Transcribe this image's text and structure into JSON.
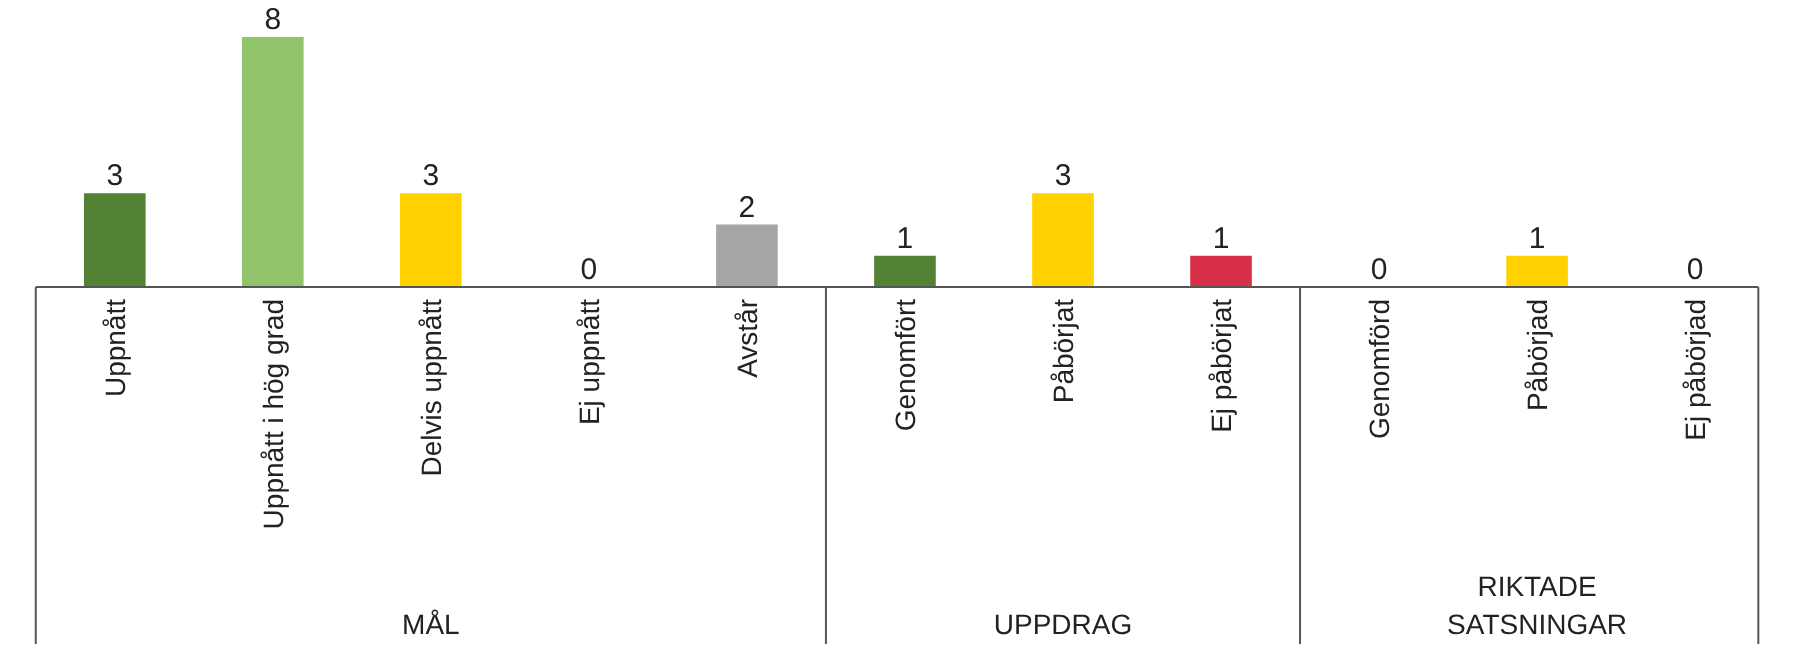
{
  "chart_data": {
    "type": "bar",
    "categories": [
      "Uppnått",
      "Uppnått i hög grad",
      "Delvis uppnått",
      "Ej uppnått",
      "Avstår",
      "Genomfört",
      "Påbörjat",
      "Ej påbörjat",
      "Genomförd",
      "Påbörjad",
      "Ej påbörjad"
    ],
    "values": [
      3,
      8,
      3,
      0,
      2,
      1,
      3,
      1,
      0,
      1,
      0
    ],
    "colors": [
      "#548235",
      "#8fc46a",
      "#ffd200",
      "#a6a6a6",
      "#a6a6a6",
      "#548235",
      "#ffd200",
      "#d9304a",
      "#548235",
      "#ffd200",
      "#d9304a"
    ],
    "data_labels": true,
    "grid": false,
    "annotations": [
      "MÅL",
      "UPPDRAG",
      "RIKTADE\nSATSNINGAR"
    ]
  }
}
